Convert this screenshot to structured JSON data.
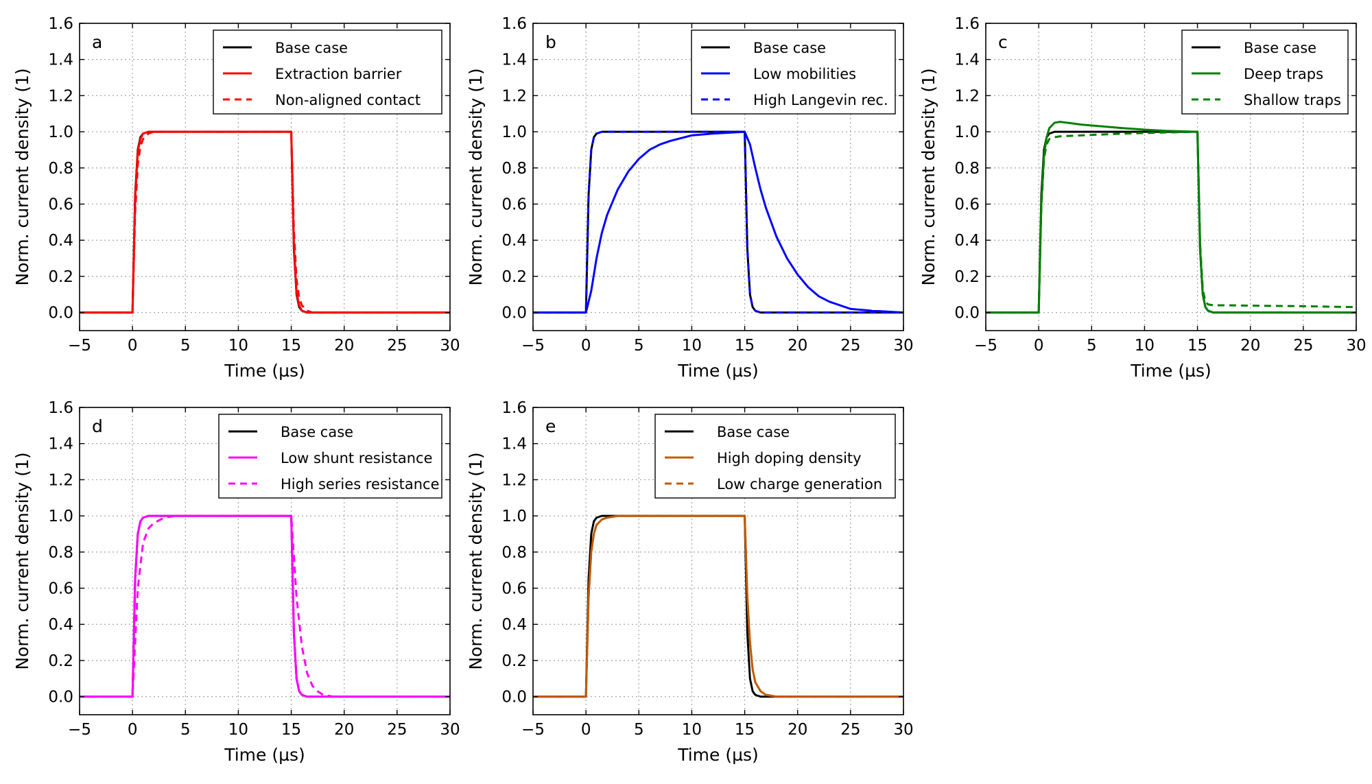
{
  "figure": {
    "background": "#ffffff"
  },
  "chart_data": [
    {
      "type": "line",
      "panel": "a",
      "xlabel": "Time (µs)",
      "ylabel": "Norm. current density (1)",
      "xlim": [
        -5,
        30
      ],
      "ylim": [
        -0.1,
        1.6
      ],
      "xticks": [
        -5,
        0,
        5,
        10,
        15,
        20,
        25,
        30
      ],
      "xticklabels": [
        "−5",
        "0",
        "5",
        "10",
        "15",
        "20",
        "25",
        "30"
      ],
      "yticks": [
        0,
        0.2,
        0.4,
        0.6,
        0.8,
        1.0,
        1.2,
        1.4,
        1.6
      ],
      "yticklabels": [
        "0.0",
        "0.2",
        "0.4",
        "0.6",
        "0.8",
        "1.0",
        "1.2",
        "1.4",
        "1.6"
      ],
      "grid": true,
      "legend": "top-right",
      "series": [
        {
          "name": "Base case",
          "color": "#000000",
          "dash": "solid",
          "x": [
            -5,
            0,
            0.25,
            0.5,
            0.75,
            1.0,
            1.5,
            2.0,
            3.0,
            15,
            15.25,
            15.5,
            15.75,
            16.0,
            16.5,
            17.0,
            18.0,
            30
          ],
          "y": [
            0,
            0,
            0.65,
            0.9,
            0.97,
            0.99,
            1.0,
            1.0,
            1.0,
            1.0,
            0.35,
            0.1,
            0.03,
            0.01,
            0,
            0,
            0,
            0
          ]
        },
        {
          "name": "Extraction barrier",
          "color": "#ff0000",
          "dash": "solid",
          "x": [
            -5,
            0,
            0.25,
            0.5,
            0.75,
            1.0,
            1.5,
            2.0,
            3.0,
            15,
            15.25,
            15.5,
            15.75,
            16.0,
            16.5,
            17.0,
            18.0,
            30
          ],
          "y": [
            0,
            0,
            0.63,
            0.89,
            0.96,
            0.99,
            1.0,
            1.0,
            1.0,
            1.0,
            0.37,
            0.11,
            0.04,
            0.01,
            0,
            0,
            0,
            0
          ]
        },
        {
          "name": "Non-aligned contact",
          "color": "#ff0000",
          "dash": "dashed",
          "x": [
            -5,
            0,
            0.25,
            0.5,
            0.75,
            1.0,
            1.5,
            2.0,
            3.0,
            15,
            15.25,
            15.5,
            15.75,
            16.0,
            16.5,
            17.0,
            18.0,
            30
          ],
          "y": [
            0,
            0,
            0.55,
            0.82,
            0.92,
            0.96,
            0.99,
            1.0,
            1.0,
            1.0,
            0.45,
            0.18,
            0.08,
            0.04,
            0.01,
            0,
            0,
            0
          ]
        }
      ]
    },
    {
      "type": "line",
      "panel": "b",
      "xlabel": "Time (µs)",
      "ylabel": "Norm. current density (1)",
      "xlim": [
        -5,
        30
      ],
      "ylim": [
        -0.1,
        1.6
      ],
      "xticks": [
        -5,
        0,
        5,
        10,
        15,
        20,
        25,
        30
      ],
      "xticklabels": [
        "−5",
        "0",
        "5",
        "10",
        "15",
        "20",
        "25",
        "30"
      ],
      "yticks": [
        0,
        0.2,
        0.4,
        0.6,
        0.8,
        1.0,
        1.2,
        1.4,
        1.6
      ],
      "yticklabels": [
        "0.0",
        "0.2",
        "0.4",
        "0.6",
        "0.8",
        "1.0",
        "1.2",
        "1.4",
        "1.6"
      ],
      "grid": true,
      "legend": "top-right",
      "series": [
        {
          "name": "Base case",
          "color": "#000000",
          "dash": "solid",
          "x": [
            -5,
            0,
            0.25,
            0.5,
            0.75,
            1.0,
            1.5,
            2.0,
            3.0,
            15,
            15.25,
            15.5,
            15.75,
            16.0,
            16.5,
            17.0,
            18.0,
            30
          ],
          "y": [
            0,
            0,
            0.65,
            0.9,
            0.97,
            0.99,
            1.0,
            1.0,
            1.0,
            1.0,
            0.35,
            0.1,
            0.03,
            0.01,
            0,
            0,
            0,
            0
          ]
        },
        {
          "name": "Low mobilities",
          "color": "#0000ff",
          "dash": "solid",
          "x": [
            -5,
            0,
            0.5,
            1,
            1.5,
            2,
            3,
            4,
            5,
            6,
            7,
            8,
            10,
            12,
            15,
            15.5,
            16,
            16.5,
            17,
            18,
            19,
            20,
            21,
            22,
            23,
            25,
            27,
            30
          ],
          "y": [
            0,
            0,
            0.12,
            0.3,
            0.44,
            0.54,
            0.68,
            0.78,
            0.85,
            0.9,
            0.93,
            0.95,
            0.98,
            0.99,
            1.0,
            0.93,
            0.8,
            0.68,
            0.58,
            0.42,
            0.3,
            0.21,
            0.14,
            0.09,
            0.06,
            0.02,
            0.01,
            0
          ]
        },
        {
          "name": "High Langevin rec.",
          "color": "#0000ff",
          "dash": "dashed",
          "x": [
            -5,
            0,
            0.25,
            0.5,
            0.75,
            1.0,
            1.5,
            2.0,
            3.0,
            15,
            15.25,
            15.5,
            15.75,
            16.0,
            16.5,
            17.0,
            18.0,
            30
          ],
          "y": [
            0,
            0,
            0.65,
            0.9,
            0.97,
            0.99,
            1.0,
            1.0,
            1.0,
            1.0,
            0.35,
            0.1,
            0.03,
            0.01,
            0,
            0,
            0,
            0
          ]
        }
      ]
    },
    {
      "type": "line",
      "panel": "c",
      "xlabel": "Time (µs)",
      "ylabel": "Norm. current density (1)",
      "xlim": [
        -5,
        30
      ],
      "ylim": [
        -0.1,
        1.6
      ],
      "xticks": [
        -5,
        0,
        5,
        10,
        15,
        20,
        25,
        30
      ],
      "xticklabels": [
        "−5",
        "0",
        "5",
        "10",
        "15",
        "20",
        "25",
        "30"
      ],
      "yticks": [
        0,
        0.2,
        0.4,
        0.6,
        0.8,
        1.0,
        1.2,
        1.4,
        1.6
      ],
      "yticklabels": [
        "0.0",
        "0.2",
        "0.4",
        "0.6",
        "0.8",
        "1.0",
        "1.2",
        "1.4",
        "1.6"
      ],
      "grid": true,
      "legend": "top-right",
      "series": [
        {
          "name": "Base case",
          "color": "#000000",
          "dash": "solid",
          "x": [
            -5,
            0,
            0.25,
            0.5,
            0.75,
            1.0,
            1.5,
            2.0,
            3.0,
            15,
            15.25,
            15.5,
            15.75,
            16.0,
            16.5,
            17.0,
            18.0,
            30
          ],
          "y": [
            0,
            0,
            0.65,
            0.9,
            0.97,
            0.99,
            1.0,
            1.0,
            1.0,
            1.0,
            0.35,
            0.1,
            0.03,
            0.01,
            0,
            0,
            0,
            0
          ]
        },
        {
          "name": "Deep traps",
          "color": "#008000",
          "dash": "solid",
          "x": [
            -5,
            0,
            0.25,
            0.5,
            0.75,
            1.0,
            1.5,
            2.0,
            3,
            4,
            6,
            8,
            10,
            12,
            15,
            15.25,
            15.5,
            15.75,
            16.0,
            16.5,
            17.0,
            18.0,
            30
          ],
          "y": [
            0,
            0,
            0.6,
            0.87,
            0.97,
            1.02,
            1.05,
            1.055,
            1.048,
            1.04,
            1.03,
            1.02,
            1.012,
            1.005,
            1.0,
            0.35,
            0.1,
            0.03,
            0.01,
            0,
            0,
            0,
            0
          ]
        },
        {
          "name": "Shallow traps",
          "color": "#008000",
          "dash": "dashed",
          "x": [
            -5,
            0,
            0.25,
            0.5,
            0.75,
            1.0,
            1.5,
            2,
            4,
            6,
            8,
            10,
            12,
            15,
            15.25,
            15.5,
            15.75,
            16.0,
            16.5,
            17,
            18,
            20,
            25,
            30
          ],
          "y": [
            0,
            0,
            0.58,
            0.85,
            0.93,
            0.96,
            0.97,
            0.975,
            0.98,
            0.985,
            0.99,
            0.993,
            0.996,
            1.0,
            0.38,
            0.13,
            0.06,
            0.045,
            0.04,
            0.04,
            0.04,
            0.038,
            0.035,
            0.03
          ]
        }
      ]
    },
    {
      "type": "line",
      "panel": "d",
      "xlabel": "Time (µs)",
      "ylabel": "Norm. current density (1)",
      "xlim": [
        -5,
        30
      ],
      "ylim": [
        -0.1,
        1.6
      ],
      "xticks": [
        -5,
        0,
        5,
        10,
        15,
        20,
        25,
        30
      ],
      "xticklabels": [
        "−5",
        "0",
        "5",
        "10",
        "15",
        "20",
        "25",
        "30"
      ],
      "yticks": [
        0,
        0.2,
        0.4,
        0.6,
        0.8,
        1.0,
        1.2,
        1.4,
        1.6
      ],
      "yticklabels": [
        "0.0",
        "0.2",
        "0.4",
        "0.6",
        "0.8",
        "1.0",
        "1.2",
        "1.4",
        "1.6"
      ],
      "grid": true,
      "legend": "top-right",
      "series": [
        {
          "name": "Base case",
          "color": "#000000",
          "dash": "solid",
          "x": [
            -5,
            0,
            0.25,
            0.5,
            0.75,
            1.0,
            1.5,
            2.0,
            3.0,
            15,
            15.25,
            15.5,
            15.75,
            16.0,
            16.5,
            17.0,
            18.0,
            30
          ],
          "y": [
            0,
            0,
            0.65,
            0.9,
            0.97,
            0.99,
            1.0,
            1.0,
            1.0,
            1.0,
            0.35,
            0.1,
            0.03,
            0.01,
            0,
            0,
            0,
            0
          ]
        },
        {
          "name": "Low shunt resistance",
          "color": "#ff00ff",
          "dash": "solid",
          "x": [
            -5,
            0,
            0.25,
            0.5,
            0.75,
            1.0,
            1.5,
            2.0,
            3.0,
            15,
            15.25,
            15.5,
            15.75,
            16.0,
            16.5,
            17.0,
            18.0,
            30
          ],
          "y": [
            0,
            0,
            0.65,
            0.9,
            0.97,
            0.99,
            1.0,
            1.0,
            1.0,
            1.0,
            0.35,
            0.1,
            0.03,
            0.01,
            0,
            0,
            0,
            0
          ]
        },
        {
          "name": "High series resistance",
          "color": "#ff00ff",
          "dash": "dashed",
          "x": [
            -5,
            0,
            0.5,
            1.0,
            1.5,
            2.0,
            3.0,
            4.0,
            5.0,
            15,
            15.5,
            16.0,
            16.5,
            17.0,
            17.5,
            18.0,
            19.0,
            30
          ],
          "y": [
            0,
            0,
            0.6,
            0.85,
            0.93,
            0.96,
            0.99,
            1.0,
            1.0,
            1.0,
            0.55,
            0.28,
            0.13,
            0.06,
            0.03,
            0.01,
            0,
            0
          ]
        }
      ]
    },
    {
      "type": "line",
      "panel": "e",
      "xlabel": "Time (µs)",
      "ylabel": "Norm. current density (1)",
      "xlim": [
        -5,
        30
      ],
      "ylim": [
        -0.1,
        1.6
      ],
      "xticks": [
        -5,
        0,
        5,
        10,
        15,
        20,
        25,
        30
      ],
      "xticklabels": [
        "−5",
        "0",
        "5",
        "10",
        "15",
        "20",
        "25",
        "30"
      ],
      "yticks": [
        0,
        0.2,
        0.4,
        0.6,
        0.8,
        1.0,
        1.2,
        1.4,
        1.6
      ],
      "yticklabels": [
        "0.0",
        "0.2",
        "0.4",
        "0.6",
        "0.8",
        "1.0",
        "1.2",
        "1.4",
        "1.6"
      ],
      "grid": true,
      "legend": "top-right",
      "series": [
        {
          "name": "Base case",
          "color": "#000000",
          "dash": "solid",
          "x": [
            -5,
            0,
            0.25,
            0.5,
            0.75,
            1.0,
            1.5,
            2.0,
            3.0,
            15,
            15.25,
            15.5,
            15.75,
            16.0,
            16.5,
            17.0,
            18.0,
            30
          ],
          "y": [
            0,
            0,
            0.65,
            0.9,
            0.97,
            0.99,
            1.0,
            1.0,
            1.0,
            1.0,
            0.35,
            0.1,
            0.03,
            0.01,
            0,
            0,
            0,
            0
          ]
        },
        {
          "name": "High doping density",
          "color": "#c05a00",
          "dash": "solid",
          "x": [
            -5,
            0,
            0.25,
            0.5,
            0.75,
            1.0,
            1.5,
            2.0,
            3.0,
            4.0,
            15,
            15.25,
            15.5,
            15.75,
            16.0,
            16.5,
            17.0,
            18.0,
            30
          ],
          "y": [
            0,
            0,
            0.55,
            0.8,
            0.9,
            0.95,
            0.98,
            0.99,
            1.0,
            1.0,
            1.0,
            0.55,
            0.3,
            0.15,
            0.08,
            0.03,
            0.01,
            0,
            0
          ]
        },
        {
          "name": "Low charge generation",
          "color": "#c05a00",
          "dash": "dashed",
          "x": [
            -5,
            0,
            0.25,
            0.5,
            0.75,
            1.0,
            1.5,
            2.0,
            3.0,
            4.0,
            15,
            15.25,
            15.5,
            15.75,
            16.0,
            16.5,
            17.0,
            18.0,
            30
          ],
          "y": [
            0,
            0,
            0.55,
            0.8,
            0.9,
            0.95,
            0.98,
            0.99,
            1.0,
            1.0,
            1.0,
            0.55,
            0.3,
            0.15,
            0.08,
            0.03,
            0.01,
            0,
            0
          ]
        }
      ]
    }
  ]
}
